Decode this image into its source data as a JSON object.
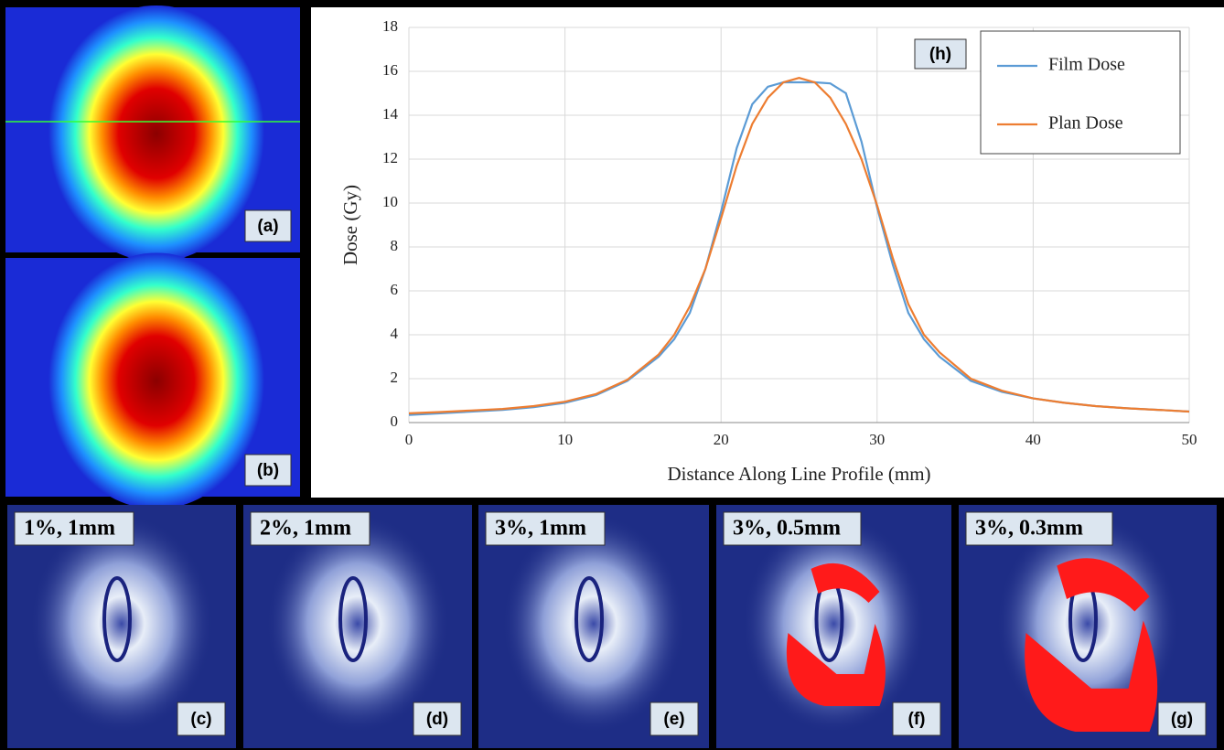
{
  "chart_data": {
    "type": "line",
    "annotation": "(h)",
    "xlabel": "Distance Along Line Profile (mm)",
    "ylabel": "Dose (Gy)",
    "x": [
      0,
      2,
      4,
      6,
      8,
      10,
      12,
      14,
      16,
      17,
      18,
      19,
      20,
      21,
      22,
      23,
      24,
      25,
      26,
      27,
      28,
      29,
      30,
      31,
      32,
      33,
      34,
      36,
      38,
      40,
      42,
      44,
      46,
      48,
      50
    ],
    "series": [
      {
        "name": "Film Dose",
        "color": "#5b9bd5",
        "values": [
          0.35,
          0.42,
          0.5,
          0.58,
          0.7,
          0.9,
          1.25,
          1.9,
          3.0,
          3.8,
          5.0,
          7.0,
          9.6,
          12.5,
          14.5,
          15.3,
          15.5,
          15.5,
          15.5,
          15.45,
          15.0,
          12.8,
          9.8,
          7.2,
          5.0,
          3.8,
          3.0,
          1.9,
          1.4,
          1.1,
          0.9,
          0.75,
          0.65,
          0.58,
          0.5
        ]
      },
      {
        "name": "Plan Dose",
        "color": "#ed7d31",
        "values": [
          0.42,
          0.48,
          0.55,
          0.62,
          0.75,
          0.95,
          1.3,
          1.95,
          3.1,
          4.0,
          5.3,
          7.0,
          9.3,
          11.7,
          13.6,
          14.8,
          15.5,
          15.7,
          15.5,
          14.8,
          13.6,
          12.0,
          9.9,
          7.5,
          5.4,
          4.0,
          3.2,
          2.0,
          1.45,
          1.1,
          0.9,
          0.75,
          0.65,
          0.58,
          0.5
        ]
      }
    ],
    "xlim": [
      0,
      50
    ],
    "xticks": [
      0,
      10,
      20,
      30,
      40,
      50
    ],
    "ylim": [
      0,
      18
    ],
    "yticks": [
      0,
      2,
      4,
      6,
      8,
      10,
      12,
      14,
      16,
      18
    ],
    "grid": true,
    "legend": "top-right"
  },
  "dose_panels": [
    {
      "label": "(a)"
    },
    {
      "label": "(b)"
    }
  ],
  "gamma_panels": [
    {
      "criteria": "1%, 1mm",
      "label": "(c)"
    },
    {
      "criteria": "2%, 1mm",
      "label": "(d)"
    },
    {
      "criteria": "3%, 1mm",
      "label": "(e)"
    },
    {
      "criteria": "3%, 0.5mm",
      "label": "(f)"
    },
    {
      "criteria": "3%, 0.3mm",
      "label": "(g)"
    }
  ]
}
